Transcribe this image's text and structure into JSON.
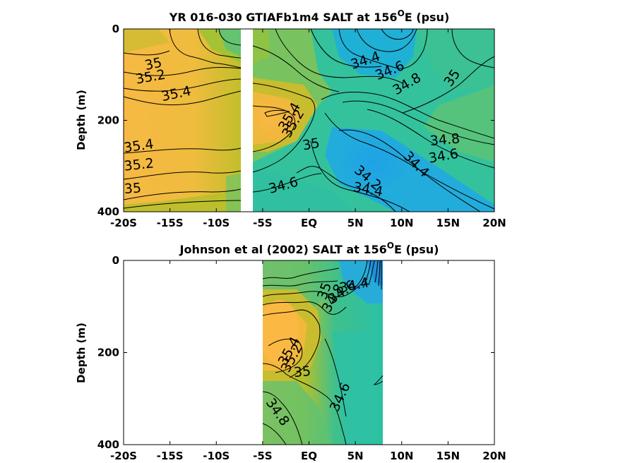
{
  "chart_data": [
    {
      "type": "heatmap",
      "title": "YR 016-030 GTIAFb1m4 SALT at 156",
      "title_sup": "O",
      "title_suffix": "E (psu)",
      "ylabel": "Depth (m)",
      "xlim": [
        -20,
        20
      ],
      "ylim": [
        0,
        400
      ],
      "x_ticks": [
        {
          "value": -20,
          "label": "-20S"
        },
        {
          "value": -15,
          "label": "-15S"
        },
        {
          "value": -10,
          "label": "-10S"
        },
        {
          "value": -5,
          "label": "-5S"
        },
        {
          "value": 0,
          "label": "EQ"
        },
        {
          "value": 5,
          "label": "5N"
        },
        {
          "value": 10,
          "label": "10N"
        },
        {
          "value": 15,
          "label": "15N"
        },
        {
          "value": 20,
          "label": "20N"
        }
      ],
      "y_ticks": [
        {
          "value": 0,
          "label": "0"
        },
        {
          "value": 200,
          "label": "200"
        },
        {
          "value": 400,
          "label": "400"
        }
      ],
      "contour_labels": [
        {
          "lat": -17.6,
          "depth": 90,
          "label": "35",
          "rot": -12
        },
        {
          "lat": -18.6,
          "depth": 120,
          "label": "35.2",
          "rot": -10
        },
        {
          "lat": -15.8,
          "depth": 158,
          "label": "35.4",
          "rot": -12
        },
        {
          "lat": -19.9,
          "depth": 270,
          "label": "35.4",
          "rot": -8
        },
        {
          "lat": -19.9,
          "depth": 310,
          "label": "35.2",
          "rot": -6
        },
        {
          "lat": -19.9,
          "depth": 360,
          "label": "35",
          "rot": -4
        },
        {
          "lat": 4.7,
          "depth": 88,
          "label": "34.4",
          "rot": -18
        },
        {
          "lat": 7.4,
          "depth": 112,
          "label": "34.6",
          "rot": -22
        },
        {
          "lat": 9.4,
          "depth": 145,
          "label": "34.8",
          "rot": -30
        },
        {
          "lat": 15.3,
          "depth": 128,
          "label": "35",
          "rot": -55
        },
        {
          "lat": -2.5,
          "depth": 225,
          "label": "35.4",
          "rot": -60
        },
        {
          "lat": -2.1,
          "depth": 240,
          "label": "35.2",
          "rot": -60
        },
        {
          "lat": -0.6,
          "depth": 265,
          "label": "35",
          "rot": -10
        },
        {
          "lat": -4.2,
          "depth": 360,
          "label": "34.6",
          "rot": -15
        },
        {
          "lat": 4.8,
          "depth": 312,
          "label": "34.2",
          "rot": 40
        },
        {
          "lat": 4.7,
          "depth": 355,
          "label": "34.4",
          "rot": 10
        },
        {
          "lat": 13.1,
          "depth": 255,
          "label": "34.8",
          "rot": -5
        },
        {
          "lat": 10.1,
          "depth": 280,
          "label": "34.4",
          "rot": 45
        },
        {
          "lat": 13.0,
          "depth": 293,
          "label": "34.6",
          "rot": -10
        }
      ],
      "gap": [
        -6.8,
        -5.7
      ]
    },
    {
      "type": "heatmap",
      "title": "Johnson et al (2002) SALT at 156",
      "title_sup": "O",
      "title_suffix": "E (psu)",
      "ylabel": "Depth (m)",
      "xlim": [
        -20,
        20
      ],
      "ylim": [
        0,
        400
      ],
      "data_range": [
        -5,
        8
      ],
      "x_ticks": [
        {
          "value": -20,
          "label": "-20S"
        },
        {
          "value": -15,
          "label": "-15S"
        },
        {
          "value": -10,
          "label": "-10S"
        },
        {
          "value": -5,
          "label": "-5S"
        },
        {
          "value": 0,
          "label": "EQ"
        },
        {
          "value": 5,
          "label": "5N"
        },
        {
          "value": 10,
          "label": "10N"
        },
        {
          "value": 15,
          "label": "15N"
        },
        {
          "value": 20,
          "label": "20N"
        }
      ],
      "y_ticks": [
        {
          "value": 0,
          "label": "0"
        },
        {
          "value": 200,
          "label": "200"
        },
        {
          "value": 400,
          "label": "400"
        }
      ],
      "contour_labels": [
        {
          "lat": 3.4,
          "depth": 70,
          "label": "34.4",
          "rot": -12
        },
        {
          "lat": 2.5,
          "depth": 95,
          "label": "34.6",
          "rot": -35
        },
        {
          "lat": 2.2,
          "depth": 115,
          "label": "34.8",
          "rot": -60
        },
        {
          "lat": 1.8,
          "depth": 87,
          "label": "35",
          "rot": -70
        },
        {
          "lat": -2.5,
          "depth": 230,
          "label": "35.4",
          "rot": -62
        },
        {
          "lat": -2.2,
          "depth": 245,
          "label": "35.2",
          "rot": -62
        },
        {
          "lat": -1.6,
          "depth": 253,
          "label": "35",
          "rot": -5
        },
        {
          "lat": -4.7,
          "depth": 308,
          "label": "34.8",
          "rot": 55
        },
        {
          "lat": 3.1,
          "depth": 330,
          "label": "34.6",
          "rot": -65
        }
      ]
    }
  ]
}
